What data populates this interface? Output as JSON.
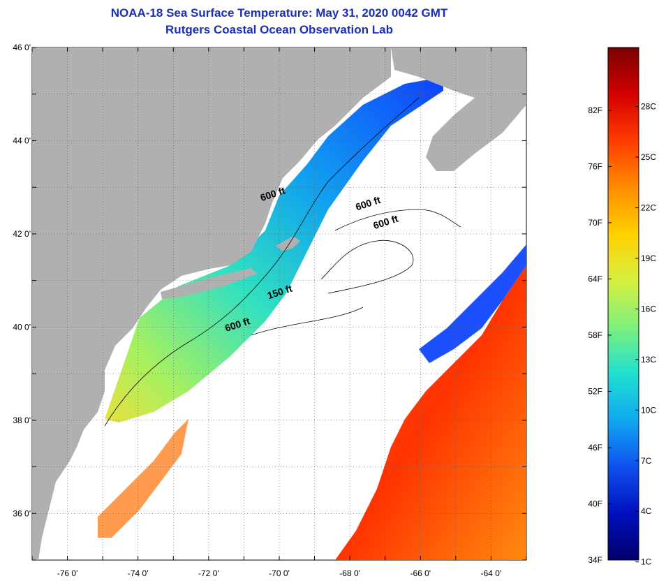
{
  "header": {
    "title": "NOAA-18 Sea Surface Temperature:  May 31, 2020 0042 GMT",
    "subtitle": "Rutgers Coastal Ocean Observation Lab"
  },
  "map": {
    "lon_range": [
      -77.0,
      -63.0
    ],
    "lat_range": [
      35.0,
      46.0
    ],
    "lon_ticks": [
      {
        "value": -76,
        "label": "-76 0'"
      },
      {
        "value": -74,
        "label": "-74 0'"
      },
      {
        "value": -72,
        "label": "-72 0'"
      },
      {
        "value": -70,
        "label": "-70 0'"
      },
      {
        "value": -68,
        "label": "-68 0'"
      },
      {
        "value": -66,
        "label": "-66 0'"
      },
      {
        "value": -64,
        "label": "-64 0'"
      }
    ],
    "lat_ticks": [
      {
        "value": 46,
        "label": "46 0'"
      },
      {
        "value": 44,
        "label": "44 0'"
      },
      {
        "value": 42,
        "label": "42 0'"
      },
      {
        "value": 40,
        "label": "40 0'"
      },
      {
        "value": 38,
        "label": "38 0'"
      },
      {
        "value": 36,
        "label": "36 0'"
      }
    ],
    "contour_labels": [
      {
        "text": "600 ft",
        "lon": -70.5,
        "lat": 42.7
      },
      {
        "text": "600 ft",
        "lon": -67.8,
        "lat": 42.5
      },
      {
        "text": "600 ft",
        "lon": -67.3,
        "lat": 42.1
      },
      {
        "text": "150 ft",
        "lon": -70.3,
        "lat": 40.6
      },
      {
        "text": "600 ft",
        "lon": -71.5,
        "lat": 39.9
      }
    ],
    "colors": {
      "land": "#b0b0b0",
      "cloud": "#ffffff",
      "grid": "#555555"
    }
  },
  "colorbar": {
    "fahrenheit": [
      {
        "value": 82,
        "label": "82F"
      },
      {
        "value": 76,
        "label": "76F"
      },
      {
        "value": 70,
        "label": "70F"
      },
      {
        "value": 64,
        "label": "64F"
      },
      {
        "value": 58,
        "label": "58F"
      },
      {
        "value": 52,
        "label": "52F"
      },
      {
        "value": 46,
        "label": "46F"
      },
      {
        "value": 40,
        "label": "40F"
      },
      {
        "value": 34,
        "label": "34F"
      }
    ],
    "celsius": [
      {
        "value": 28,
        "label": "28C"
      },
      {
        "value": 25,
        "label": "25C"
      },
      {
        "value": 22,
        "label": "22C"
      },
      {
        "value": 19,
        "label": "19C"
      },
      {
        "value": 16,
        "label": "16C"
      },
      {
        "value": 13,
        "label": "13C"
      },
      {
        "value": 10,
        "label": "10C"
      },
      {
        "value": 7,
        "label": "7C"
      },
      {
        "value": 4,
        "label": "4C"
      },
      {
        "value": 1,
        "label": "1C"
      }
    ],
    "gradient": [
      "#7a0000",
      "#d40000",
      "#ff3c00",
      "#ff8c00",
      "#ffd000",
      "#d8f040",
      "#7cf07c",
      "#20e0d0",
      "#10a8f0",
      "#1050f0",
      "#0010c0",
      "#00006a"
    ]
  }
}
